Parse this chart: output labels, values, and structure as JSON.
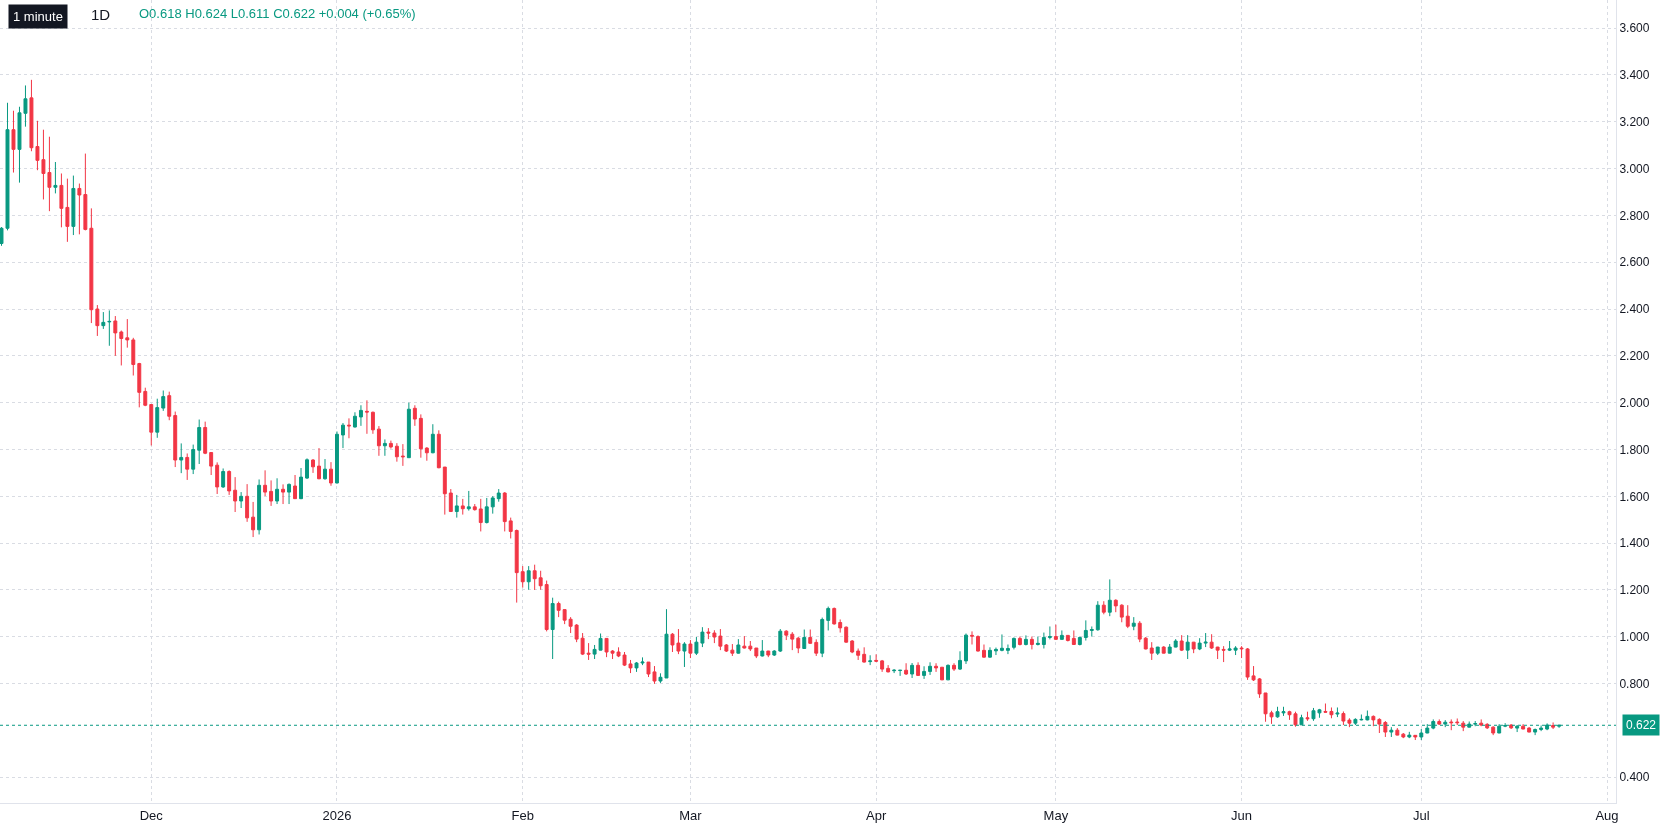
{
  "chart_data": {
    "type": "candlestick",
    "title": "1D",
    "annotations": [
      "1 minute",
      "O0.618 H0.624 L0.611 C0.622 +0.004 (+0.65%)"
    ],
    "colors": [
      "#089981",
      "#089981",
      "#f23645",
      "#089981",
      "#089981",
      "#f23645",
      "#f23645",
      "#f23645",
      "#f23645",
      "#089981",
      "#f23645",
      "#f23645",
      "#089981",
      "#f23645",
      "#f23645",
      "#f23645",
      "#f23645",
      "#089981",
      "#089981",
      "#f23645",
      "#f23645",
      "#f23645",
      "#f23645",
      "#f23645",
      "#f23645",
      "#f23645",
      "#089981",
      "#089981",
      "#f23645",
      "#f23645",
      "#089981",
      "#f23645",
      "#089981",
      "#089981",
      "#f23645",
      "#f23645",
      "#f23645",
      "#089981",
      "#f23645",
      "#f23645",
      "#089981",
      "#f23645",
      "#f23645",
      "#089981",
      "#f23645",
      "#f23645",
      "#089981",
      "#f23645",
      "#089981",
      "#f23645",
      "#089981",
      "#089981",
      "#f23645",
      "#f23645",
      "#089981",
      "#f23645",
      "#089981",
      "#089981",
      "#f23645",
      "#089981",
      "#089981",
      "#f23645",
      "#f23645",
      "#f23645",
      "#089981",
      "#f23645",
      "#f23645",
      "#f23645",
      "#089981",
      "#f23645",
      "#f23645",
      "#f23645",
      "#089981",
      "#f23645",
      "#f23645",
      "#f23645",
      "#089981",
      "#f23645",
      "#089981",
      "#f23645",
      "#f23645",
      "#089981",
      "#089981",
      "#089981",
      "#f23645",
      "#f23645",
      "#f23645",
      "#f23645",
      "#089981",
      "#f23645",
      "#f23645",
      "#f23645",
      "#089981",
      "#f23645",
      "#f23645",
      "#f23645",
      "#f23645",
      "#f23645",
      "#f23645",
      "#089981",
      "#089981",
      "#f23645",
      "#f23645",
      "#f23645",
      "#f23645",
      "#f23645",
      "#089981",
      "#089981",
      "#f23645",
      "#f23645",
      "#089981",
      "#089981",
      "#f23645",
      "#f23645",
      "#089981",
      "#f23645",
      "#089981",
      "#089981",
      "#f23645",
      "#f23645",
      "#f23645",
      "#f23645",
      "#f23645",
      "#089981",
      "#f23645",
      "#f23645",
      "#f23645",
      "#089981",
      "#f23645",
      "#089981",
      "#089981",
      "#f23645",
      "#f23645",
      "#f23645",
      "#089981",
      "#f23645",
      "#f23645",
      "#089981",
      "#089981",
      "#f23645",
      "#f23645",
      "#f23645",
      "#f23645",
      "#f23645",
      "#f23645",
      "#089981",
      "#f23645",
      "#f23645",
      "#f23645",
      "#089981",
      "#089981",
      "#f23645",
      "#089981",
      "#f23645",
      "#089981",
      "#089981",
      "#f23645",
      "#f23645",
      "#089981",
      "#f23645",
      "#089981",
      "#089981",
      "#f23645",
      "#f23645",
      "#f23645",
      "#089981",
      "#089981",
      "#089981",
      "#089981",
      "#089981",
      "#f23645",
      "#089981",
      "#f23645",
      "#089981",
      "#089981",
      "#089981",
      "#f23645",
      "#089981",
      "#f23645",
      "#f23645",
      "#089981",
      "#089981",
      "#089981",
      "#089981",
      "#f23645",
      "#089981",
      "#f23645",
      "#f23645",
      "#f23645",
      "#089981",
      "#f23645",
      "#f23645",
      "#f23645",
      "#089981",
      "#f23645",
      "#089981",
      "#089981",
      "#f23645",
      "#089981",
      "#f23645",
      "#089981",
      "#089981",
      "#f23645",
      "#f23645",
      "#f23645",
      "#089981",
      "#089981",
      "#f23645",
      "#f23645",
      "#f23645",
      "#f23645",
      "#f23645",
      "#f23645",
      "#089981",
      "#089981",
      "#f23645",
      "#f23645",
      "#089981",
      "#f23645",
      "#089981",
      "#089981",
      "#f23645",
      "#f23645",
      "#089981",
      "#f23645",
      "#f23645",
      "#089981",
      "#089981",
      "#089981",
      "#f23645",
      "#f23645",
      "#f23645",
      "#089981",
      "#f23645",
      "#f23645",
      "#089981",
      "#f23645",
      "#089981",
      "#089981",
      "#089981",
      "#f23645",
      "#089981",
      "#f23645",
      "#f23645",
      "#f23645",
      "#089981",
      "#089981",
      "#f23645",
      "#f23645",
      "#f23645",
      "#089981",
      "#089981",
      "#f23645",
      "#089981",
      "#f23645",
      "#f23645",
      "#089981",
      "#089981",
      "#089981",
      "#f23645",
      "#089981"
    ],
    "x": [
      "2025-11-06",
      "2025-11-07",
      "2025-11-08",
      "2025-11-09",
      "2025-11-10",
      "2025-11-11",
      "2025-11-12",
      "2025-11-13",
      "2025-11-14",
      "2025-11-15",
      "2025-11-16",
      "2025-11-17",
      "2025-11-18",
      "2025-11-19",
      "2025-11-20",
      "2025-11-21",
      "2025-11-22",
      "2025-11-23",
      "2025-11-24",
      "2025-11-25",
      "2025-11-26",
      "2025-11-27",
      "2025-11-28",
      "2025-11-29",
      "2025-11-30",
      "2025-12-01",
      "2025-12-02",
      "2025-12-03",
      "2025-12-04",
      "2025-12-05",
      "2025-12-06",
      "2025-12-07",
      "2025-12-08",
      "2025-12-09",
      "2025-12-10",
      "2025-12-11",
      "2025-12-12",
      "2025-12-13",
      "2025-12-14",
      "2025-12-15",
      "2025-12-16",
      "2025-12-17",
      "2025-12-18",
      "2025-12-19",
      "2025-12-20",
      "2025-12-21",
      "2025-12-22",
      "2025-12-23",
      "2025-12-24",
      "2025-12-25",
      "2025-12-26",
      "2025-12-27",
      "2025-12-28",
      "2025-12-29",
      "2025-12-30",
      "2025-12-31",
      "2026-01-01",
      "2026-01-02",
      "2026-01-03",
      "2026-01-04",
      "2026-01-05",
      "2026-01-06",
      "2026-01-07",
      "2026-01-08",
      "2026-01-09",
      "2026-01-10",
      "2026-01-11",
      "2026-01-12",
      "2026-01-13",
      "2026-01-14",
      "2026-01-15",
      "2026-01-16",
      "2026-01-17",
      "2026-01-18",
      "2026-01-19",
      "2026-01-20",
      "2026-01-21",
      "2026-01-22",
      "2026-01-23",
      "2026-01-24",
      "2026-01-25",
      "2026-01-26",
      "2026-01-27",
      "2026-01-28",
      "2026-01-29",
      "2026-01-30",
      "2026-01-31",
      "2026-02-01",
      "2026-02-02",
      "2026-02-03",
      "2026-02-04",
      "2026-02-05",
      "2026-02-06",
      "2026-02-07",
      "2026-02-08",
      "2026-02-09",
      "2026-02-10",
      "2026-02-11",
      "2026-02-12",
      "2026-02-13",
      "2026-02-14",
      "2026-02-15",
      "2026-02-16",
      "2026-02-17",
      "2026-02-18",
      "2026-02-19",
      "2026-02-20",
      "2026-02-21",
      "2026-02-22",
      "2026-02-23",
      "2026-02-24",
      "2026-02-25",
      "2026-02-26",
      "2026-02-27",
      "2026-02-28",
      "2026-03-01",
      "2026-03-02",
      "2026-03-03",
      "2026-03-04",
      "2026-03-05",
      "2026-03-06",
      "2026-03-07",
      "2026-03-08",
      "2026-03-09",
      "2026-03-10",
      "2026-03-11",
      "2026-03-12",
      "2026-03-13",
      "2026-03-14",
      "2026-03-15",
      "2026-03-16",
      "2026-03-17",
      "2026-03-18",
      "2026-03-19",
      "2026-03-20",
      "2026-03-21",
      "2026-03-22",
      "2026-03-23",
      "2026-03-24",
      "2026-03-25",
      "2026-03-26",
      "2026-03-27",
      "2026-03-28",
      "2026-03-29",
      "2026-03-30",
      "2026-03-31",
      "2026-04-01",
      "2026-04-02",
      "2026-04-03",
      "2026-04-04",
      "2026-04-05",
      "2026-04-06",
      "2026-04-07",
      "2026-04-08",
      "2026-04-09",
      "2026-04-10",
      "2026-04-11",
      "2026-04-12",
      "2026-04-13",
      "2026-04-14",
      "2026-04-15",
      "2026-04-16",
      "2026-04-17",
      "2026-04-18",
      "2026-04-19",
      "2026-04-20",
      "2026-04-21",
      "2026-04-22",
      "2026-04-23",
      "2026-04-24",
      "2026-04-25",
      "2026-04-26",
      "2026-04-27",
      "2026-04-28",
      "2026-04-29",
      "2026-04-30",
      "2026-05-01",
      "2026-05-02",
      "2026-05-03",
      "2026-05-04",
      "2026-05-05",
      "2026-05-06",
      "2026-05-07",
      "2026-05-08",
      "2026-05-09",
      "2026-05-10",
      "2026-05-11",
      "2026-05-12",
      "2026-05-13",
      "2026-05-14",
      "2026-05-15",
      "2026-05-16",
      "2026-05-17",
      "2026-05-18",
      "2026-05-19",
      "2026-05-20",
      "2026-05-21",
      "2026-05-22",
      "2026-05-23",
      "2026-05-24",
      "2026-05-25",
      "2026-05-26",
      "2026-05-27",
      "2026-05-28",
      "2026-05-29",
      "2026-05-30",
      "2026-05-31",
      "2026-06-01",
      "2026-06-02",
      "2026-06-03",
      "2026-06-04",
      "2026-06-05",
      "2026-06-06",
      "2026-06-07",
      "2026-06-08",
      "2026-06-09",
      "2026-06-10",
      "2026-06-11",
      "2026-06-12",
      "2026-06-13",
      "2026-06-14",
      "2026-06-15",
      "2026-06-16",
      "2026-06-17",
      "2026-06-18",
      "2026-06-19",
      "2026-06-20",
      "2026-06-21",
      "2026-06-22",
      "2026-06-23",
      "2026-06-24",
      "2026-06-25",
      "2026-06-26",
      "2026-06-27",
      "2026-06-28",
      "2026-06-29",
      "2026-06-30",
      "2026-07-01",
      "2026-07-02",
      "2026-07-03",
      "2026-07-04",
      "2026-07-05",
      "2026-07-06",
      "2026-07-07",
      "2026-07-08",
      "2026-07-09",
      "2026-07-10",
      "2026-07-11",
      "2026-07-12",
      "2026-07-13",
      "2026-07-14",
      "2026-07-15",
      "2026-07-16",
      "2026-07-17",
      "2026-07-18",
      "2026-07-19",
      "2026-07-20",
      "2026-07-21",
      "2026-07-22",
      "2026-07-23",
      "2026-07-24"
    ],
    "ohlc": [
      [
        2.68,
        2.75,
        2.67,
        2.745
      ],
      [
        2.745,
        3.281,
        2.736,
        3.166
      ],
      [
        3.166,
        3.247,
        2.983,
        3.082
      ],
      [
        3.082,
        3.264,
        2.94,
        3.238
      ],
      [
        3.236,
        3.355,
        3.179,
        3.298
      ],
      [
        3.302,
        3.379,
        3.074,
        3.089
      ],
      [
        3.094,
        3.204,
        2.993,
        3.035
      ],
      [
        3.038,
        3.166,
        2.868,
        2.979
      ],
      [
        2.983,
        3.136,
        2.818,
        2.92
      ],
      [
        2.92,
        3.028,
        2.894,
        2.928
      ],
      [
        2.928,
        2.979,
        2.749,
        2.83
      ],
      [
        2.834,
        2.957,
        2.687,
        2.753
      ],
      [
        2.753,
        2.97,
        2.716,
        2.915
      ],
      [
        2.915,
        2.936,
        2.719,
        2.887
      ],
      [
        2.889,
        3.064,
        2.736,
        2.74
      ],
      [
        2.745,
        2.83,
        2.34,
        2.397
      ],
      [
        2.4,
        2.417,
        2.285,
        2.329
      ],
      [
        2.329,
        2.387,
        2.315,
        2.343
      ],
      [
        2.345,
        2.394,
        2.243,
        2.347
      ],
      [
        2.349,
        2.37,
        2.2,
        2.298
      ],
      [
        2.302,
        2.308,
        2.159,
        2.274
      ],
      [
        2.277,
        2.357,
        2.235,
        2.268
      ],
      [
        2.268,
        2.277,
        2.116,
        2.163
      ],
      [
        2.167,
        2.17,
        1.98,
        2.044
      ],
      [
        2.048,
        2.064,
        1.985,
        1.989
      ],
      [
        1.992,
        1.993,
        1.817,
        1.874
      ],
      [
        1.874,
        2.017,
        1.85,
        1.979
      ],
      [
        1.977,
        2.052,
        1.965,
        2.026
      ],
      [
        2.03,
        2.047,
        1.925,
        1.942
      ],
      [
        1.945,
        1.962,
        1.725,
        1.755
      ],
      [
        1.755,
        1.826,
        1.699,
        1.766
      ],
      [
        1.766,
        1.783,
        1.67,
        1.716
      ],
      [
        1.716,
        1.821,
        1.695,
        1.8
      ],
      [
        1.797,
        1.928,
        1.738,
        1.894
      ],
      [
        1.894,
        1.919,
        1.78,
        1.784
      ],
      [
        1.787,
        1.787,
        1.691,
        1.729
      ],
      [
        1.733,
        1.745,
        1.61,
        1.64
      ],
      [
        1.64,
        1.719,
        1.636,
        1.706
      ],
      [
        1.706,
        1.711,
        1.606,
        1.623
      ],
      [
        1.626,
        1.682,
        1.533,
        1.58
      ],
      [
        1.58,
        1.618,
        1.55,
        1.6
      ],
      [
        1.6,
        1.652,
        1.491,
        1.508
      ],
      [
        1.511,
        1.576,
        1.426,
        1.457
      ],
      [
        1.457,
        1.672,
        1.437,
        1.647
      ],
      [
        1.647,
        1.711,
        1.601,
        1.618
      ],
      [
        1.621,
        1.668,
        1.559,
        1.58
      ],
      [
        1.58,
        1.677,
        1.567,
        1.63
      ],
      [
        1.63,
        1.651,
        1.567,
        1.618
      ],
      [
        1.618,
        1.655,
        1.567,
        1.651
      ],
      [
        1.644,
        1.691,
        1.59,
        1.59
      ],
      [
        1.59,
        1.721,
        1.588,
        1.682
      ],
      [
        1.678,
        1.762,
        1.674,
        1.756
      ],
      [
        1.755,
        1.759,
        1.7,
        1.726
      ],
      [
        1.729,
        1.806,
        1.673,
        1.675
      ],
      [
        1.675,
        1.759,
        1.671,
        1.716
      ],
      [
        1.716,
        1.746,
        1.645,
        1.657
      ],
      [
        1.657,
        1.877,
        1.655,
        1.865
      ],
      [
        1.862,
        1.913,
        1.806,
        1.904
      ],
      [
        1.904,
        1.933,
        1.848,
        1.901
      ],
      [
        1.896,
        1.959,
        1.894,
        1.942
      ],
      [
        1.939,
        1.989,
        1.901,
        1.967
      ],
      [
        1.963,
        2.01,
        1.867,
        1.96
      ],
      [
        1.959,
        1.962,
        1.867,
        1.884
      ],
      [
        1.887,
        1.9,
        1.773,
        1.816
      ],
      [
        1.816,
        1.843,
        1.773,
        1.826
      ],
      [
        1.826,
        1.838,
        1.804,
        1.811
      ],
      [
        1.814,
        1.827,
        1.748,
        1.769
      ],
      [
        1.772,
        1.823,
        1.73,
        1.769
      ],
      [
        1.765,
        2.0,
        1.765,
        1.972
      ],
      [
        1.976,
        1.989,
        1.901,
        1.93
      ],
      [
        1.933,
        1.95,
        1.765,
        1.803
      ],
      [
        1.806,
        1.81,
        1.752,
        1.786
      ],
      [
        1.786,
        1.908,
        1.784,
        1.865
      ],
      [
        1.865,
        1.882,
        1.72,
        1.722
      ],
      [
        1.725,
        1.725,
        1.522,
        1.611
      ],
      [
        1.614,
        1.631,
        1.533,
        1.535
      ],
      [
        1.535,
        1.606,
        1.509,
        1.559
      ],
      [
        1.559,
        1.589,
        1.522,
        1.547
      ],
      [
        1.547,
        1.623,
        1.539,
        1.555
      ],
      [
        1.555,
        1.567,
        1.539,
        1.543
      ],
      [
        1.546,
        1.589,
        1.45,
        1.488
      ],
      [
        1.488,
        1.593,
        1.484,
        1.555
      ],
      [
        1.555,
        1.601,
        1.526,
        1.593
      ],
      [
        1.59,
        1.631,
        1.577,
        1.614
      ],
      [
        1.614,
        1.618,
        1.45,
        1.492
      ],
      [
        1.495,
        1.509,
        1.42,
        1.45
      ],
      [
        1.454,
        1.458,
        1.146,
        1.274
      ],
      [
        1.278,
        1.302,
        1.21,
        1.235
      ],
      [
        1.235,
        1.302,
        1.201,
        1.282
      ],
      [
        1.282,
        1.308,
        1.2,
        1.248
      ],
      [
        1.252,
        1.282,
        1.201,
        1.218
      ],
      [
        1.223,
        1.24,
        1.023,
        1.031
      ],
      [
        1.031,
        1.167,
        0.905,
        1.142
      ],
      [
        1.142,
        1.15,
        1.084,
        1.113
      ],
      [
        1.116,
        1.116,
        1.054,
        1.071
      ],
      [
        1.075,
        1.084,
        1.016,
        1.045
      ],
      [
        1.05,
        1.054,
        0.977,
        0.99
      ],
      [
        0.994,
        1.016,
        0.922,
        0.926
      ],
      [
        0.93,
        0.973,
        0.901,
        0.926
      ],
      [
        0.926,
        0.965,
        0.905,
        0.946
      ],
      [
        0.943,
        1.014,
        0.942,
        0.993
      ],
      [
        0.993,
        0.994,
        0.913,
        0.935
      ],
      [
        0.939,
        0.943,
        0.905,
        0.93
      ],
      [
        0.935,
        0.955,
        0.913,
        0.918
      ],
      [
        0.922,
        0.935,
        0.875,
        0.879
      ],
      [
        0.884,
        0.901,
        0.845,
        0.867
      ],
      [
        0.867,
        0.892,
        0.85,
        0.888
      ],
      [
        0.888,
        0.912,
        0.879,
        0.892
      ],
      [
        0.892,
        0.892,
        0.828,
        0.841
      ],
      [
        0.85,
        0.875,
        0.799,
        0.811
      ],
      [
        0.811,
        0.844,
        0.803,
        0.827
      ],
      [
        0.824,
        1.118,
        0.824,
        1.011
      ],
      [
        1.011,
        1.016,
        0.935,
        0.965
      ],
      [
        0.973,
        1.033,
        0.926,
        0.939
      ],
      [
        0.939,
        0.977,
        0.871,
        0.969
      ],
      [
        0.969,
        0.986,
        0.909,
        0.93
      ],
      [
        0.93,
        0.999,
        0.922,
        0.977
      ],
      [
        0.973,
        1.041,
        0.956,
        1.02
      ],
      [
        1.02,
        1.037,
        0.99,
        1.016
      ],
      [
        1.016,
        1.028,
        0.973,
        0.999
      ],
      [
        1.003,
        1.033,
        0.943,
        0.96
      ],
      [
        0.965,
        0.969,
        0.935,
        0.939
      ],
      [
        0.943,
        0.969,
        0.918,
        0.93
      ],
      [
        0.93,
        0.99,
        0.928,
        0.965
      ],
      [
        0.96,
        1.003,
        0.95,
        0.952
      ],
      [
        0.96,
        0.982,
        0.939,
        0.948
      ],
      [
        0.952,
        0.952,
        0.909,
        0.918
      ],
      [
        0.918,
        0.986,
        0.916,
        0.939
      ],
      [
        0.939,
        0.94,
        0.913,
        0.922
      ],
      [
        0.922,
        0.943,
        0.918,
        0.939
      ],
      [
        0.939,
        1.033,
        0.935,
        1.024
      ],
      [
        1.024,
        1.028,
        0.986,
        1.007
      ],
      [
        1.011,
        1.02,
        0.943,
        0.99
      ],
      [
        0.994,
        0.999,
        0.93,
        0.952
      ],
      [
        0.95,
        1.031,
        0.948,
        0.997
      ],
      [
        0.997,
        1.031,
        0.97,
        0.972
      ],
      [
        0.976,
        0.989,
        0.918,
        0.93
      ],
      [
        0.93,
        1.082,
        0.913,
        1.074
      ],
      [
        1.07,
        1.129,
        1.027,
        1.121
      ],
      [
        1.121,
        1.125,
        1.052,
        1.055
      ],
      [
        1.061,
        1.074,
        1.018,
        1.038
      ],
      [
        1.041,
        1.044,
        0.975,
        0.977
      ],
      [
        0.982,
        0.986,
        0.93,
        0.935
      ],
      [
        0.939,
        0.95,
        0.901,
        0.921
      ],
      [
        0.925,
        0.955,
        0.89,
        0.892
      ],
      [
        0.894,
        0.921,
        0.879,
        0.897
      ],
      [
        0.899,
        0.925,
        0.892,
        0.896
      ],
      [
        0.897,
        0.901,
        0.85,
        0.862
      ],
      [
        0.865,
        0.879,
        0.848,
        0.85
      ],
      [
        0.855,
        0.862,
        0.845,
        0.857
      ],
      [
        0.856,
        0.858,
        0.833,
        0.857
      ],
      [
        0.857,
        0.887,
        0.837,
        0.841
      ],
      [
        0.841,
        0.888,
        0.824,
        0.878
      ],
      [
        0.878,
        0.891,
        0.833,
        0.835
      ],
      [
        0.835,
        0.874,
        0.82,
        0.852
      ],
      [
        0.852,
        0.891,
        0.837,
        0.874
      ],
      [
        0.874,
        0.887,
        0.85,
        0.867
      ],
      [
        0.87,
        0.871,
        0.815,
        0.816
      ],
      [
        0.816,
        0.882,
        0.815,
        0.878
      ],
      [
        0.878,
        0.887,
        0.854,
        0.862
      ],
      [
        0.862,
        0.938,
        0.858,
        0.899
      ],
      [
        0.897,
        1.014,
        0.884,
        1.007
      ],
      [
        1.006,
        1.023,
        0.967,
        1.003
      ],
      [
        1.001,
        1.006,
        0.937,
        0.939
      ],
      [
        0.942,
        0.967,
        0.911,
        0.913
      ],
      [
        0.913,
        0.955,
        0.911,
        0.942
      ],
      [
        0.94,
        0.954,
        0.922,
        0.946
      ],
      [
        0.942,
        1.01,
        0.938,
        0.951
      ],
      [
        0.942,
        0.967,
        0.926,
        0.95
      ],
      [
        0.955,
        0.997,
        0.946,
        0.993
      ],
      [
        0.993,
        1.001,
        0.963,
        0.967
      ],
      [
        0.967,
        1.006,
        0.963,
        0.989
      ],
      [
        0.989,
        1.001,
        0.946,
        0.967
      ],
      [
        0.967,
        1.001,
        0.963,
        0.972
      ],
      [
        0.967,
        1.018,
        0.95,
        0.997
      ],
      [
        0.997,
        1.044,
        0.989,
        1.001
      ],
      [
        1.001,
        1.052,
        0.988,
        0.989
      ],
      [
        0.989,
        1.027,
        0.988,
        1.006
      ],
      [
        1.006,
        1.007,
        0.98,
        0.984
      ],
      [
        0.993,
        1.027,
        0.965,
        0.967
      ],
      [
        0.967,
        1.001,
        0.963,
        0.997
      ],
      [
        0.997,
        1.07,
        0.984,
        1.027
      ],
      [
        1.027,
        1.044,
        1.001,
        1.031
      ],
      [
        1.03,
        1.152,
        1.026,
        1.135
      ],
      [
        1.135,
        1.152,
        1.096,
        1.105
      ],
      [
        1.105,
        1.245,
        1.088,
        1.156
      ],
      [
        1.156,
        1.16,
        1.105,
        1.132
      ],
      [
        1.135,
        1.139,
        1.062,
        1.084
      ],
      [
        1.088,
        1.135,
        1.037,
        1.045
      ],
      [
        1.045,
        1.084,
        1.028,
        1.058
      ],
      [
        1.058,
        1.067,
        0.977,
        0.99
      ],
      [
        0.994,
        0.999,
        0.946,
        0.948
      ],
      [
        0.952,
        0.977,
        0.901,
        0.93
      ],
      [
        0.93,
        0.957,
        0.922,
        0.956
      ],
      [
        0.956,
        0.96,
        0.929,
        0.93
      ],
      [
        0.93,
        0.969,
        0.929,
        0.956
      ],
      [
        0.956,
        0.99,
        0.955,
        0.982
      ],
      [
        0.982,
        1.007,
        0.939,
        0.943
      ],
      [
        0.943,
        1.007,
        0.905,
        0.977
      ],
      [
        0.977,
        0.978,
        0.93,
        0.948
      ],
      [
        0.948,
        0.994,
        0.943,
        0.973
      ],
      [
        0.973,
        1.016,
        0.956,
        0.977
      ],
      [
        0.977,
        1.011,
        0.948,
        0.952
      ],
      [
        0.956,
        0.957,
        0.905,
        0.943
      ],
      [
        0.946,
        0.96,
        0.892,
        0.943
      ],
      [
        0.943,
        0.982,
        0.939,
        0.948
      ],
      [
        0.943,
        0.96,
        0.922,
        0.952
      ],
      [
        0.952,
        0.96,
        0.909,
        0.949
      ],
      [
        0.948,
        0.952,
        0.816,
        0.828
      ],
      [
        0.833,
        0.875,
        0.811,
        0.816
      ],
      [
        0.82,
        0.824,
        0.739,
        0.756
      ],
      [
        0.76,
        0.76,
        0.637,
        0.671
      ],
      [
        0.675,
        0.684,
        0.628,
        0.658
      ],
      [
        0.658,
        0.701,
        0.654,
        0.68
      ],
      [
        0.675,
        0.701,
        0.662,
        0.68
      ],
      [
        0.68,
        0.684,
        0.645,
        0.667
      ],
      [
        0.671,
        0.68,
        0.616,
        0.624
      ],
      [
        0.624,
        0.667,
        0.623,
        0.654
      ],
      [
        0.654,
        0.68,
        0.641,
        0.65
      ],
      [
        0.65,
        0.696,
        0.641,
        0.684
      ],
      [
        0.675,
        0.692,
        0.654,
        0.688
      ],
      [
        0.681,
        0.715,
        0.677,
        0.678
      ],
      [
        0.681,
        0.698,
        0.652,
        0.667
      ],
      [
        0.67,
        0.698,
        0.657,
        0.674
      ],
      [
        0.672,
        0.681,
        0.623,
        0.64
      ],
      [
        0.644,
        0.652,
        0.614,
        0.631
      ],
      [
        0.631,
        0.652,
        0.623,
        0.647
      ],
      [
        0.645,
        0.668,
        0.643,
        0.647
      ],
      [
        0.645,
        0.685,
        0.643,
        0.66
      ],
      [
        0.66,
        0.664,
        0.618,
        0.645
      ],
      [
        0.647,
        0.652,
        0.589,
        0.627
      ],
      [
        0.634,
        0.64,
        0.572,
        0.593
      ],
      [
        0.593,
        0.614,
        0.572,
        0.601
      ],
      [
        0.601,
        0.61,
        0.579,
        0.58
      ],
      [
        0.584,
        0.589,
        0.567,
        0.572
      ],
      [
        0.572,
        0.594,
        0.567,
        0.58
      ],
      [
        0.579,
        0.58,
        0.559,
        0.572
      ],
      [
        0.572,
        0.606,
        0.559,
        0.589
      ],
      [
        0.589,
        0.627,
        0.588,
        0.61
      ],
      [
        0.61,
        0.647,
        0.605,
        0.638
      ],
      [
        0.638,
        0.647,
        0.623,
        0.627
      ],
      [
        0.627,
        0.644,
        0.614,
        0.635
      ],
      [
        0.636,
        0.647,
        0.601,
        0.633
      ],
      [
        0.636,
        0.651,
        0.623,
        0.633
      ],
      [
        0.631,
        0.64,
        0.597,
        0.614
      ],
      [
        0.614,
        0.638,
        0.613,
        0.627
      ],
      [
        0.627,
        0.64,
        0.618,
        0.629
      ],
      [
        0.631,
        0.647,
        0.618,
        0.623
      ],
      [
        0.626,
        0.631,
        0.606,
        0.611
      ],
      [
        0.614,
        0.618,
        0.58,
        0.589
      ],
      [
        0.589,
        0.627,
        0.588,
        0.618
      ],
      [
        0.618,
        0.631,
        0.614,
        0.621
      ],
      [
        0.623,
        0.627,
        0.606,
        0.611
      ],
      [
        0.61,
        0.623,
        0.593,
        0.618
      ],
      [
        0.618,
        0.627,
        0.605,
        0.606
      ],
      [
        0.61,
        0.614,
        0.592,
        0.593
      ],
      [
        0.593,
        0.608,
        0.58,
        0.604
      ],
      [
        0.604,
        0.621,
        0.597,
        0.61
      ],
      [
        0.606,
        0.63,
        0.601,
        0.623
      ],
      [
        0.621,
        0.634,
        0.606,
        0.614
      ],
      [
        0.618,
        0.624,
        0.611,
        0.622
      ]
    ],
    "xlim": [
      "2025-11-05T18:00",
      "2026-08-02T12:00"
    ],
    "xticks": [
      {
        "value": "2025-12-01",
        "label": "Dec"
      },
      {
        "value": "2026-01-01",
        "label": "2026"
      },
      {
        "value": "2026-02-01",
        "label": "Feb"
      },
      {
        "value": "2026-03-01",
        "label": "Mar"
      },
      {
        "value": "2026-04-01",
        "label": "Apr"
      },
      {
        "value": "2026-05-01",
        "label": "May"
      },
      {
        "value": "2026-06-01",
        "label": "Jun"
      },
      {
        "value": "2026-07-01",
        "label": "Jul"
      },
      {
        "value": "2026-08-01",
        "label": "Aug"
      }
    ],
    "ylim": [
      0.29,
      3.72
    ],
    "yticks": [
      {
        "value": 0.4,
        "label": "0.400"
      },
      {
        "value": 0.8,
        "label": "0.800"
      },
      {
        "value": 1.0,
        "label": "1.000"
      },
      {
        "value": 1.2,
        "label": "1.200"
      },
      {
        "value": 1.4,
        "label": "1.400"
      },
      {
        "value": 1.6,
        "label": "1.600"
      },
      {
        "value": 1.8,
        "label": "1.800"
      },
      {
        "value": 2.0,
        "label": "2.000"
      },
      {
        "value": 2.2,
        "label": "2.200"
      },
      {
        "value": 2.4,
        "label": "2.400"
      },
      {
        "value": 2.6,
        "label": "2.600"
      },
      {
        "value": 2.8,
        "label": "2.800"
      },
      {
        "value": 3.0,
        "label": "3.000"
      },
      {
        "value": 3.2,
        "label": "3.200"
      },
      {
        "value": 3.4,
        "label": "3.400"
      },
      {
        "value": 3.6,
        "label": "3.600"
      }
    ],
    "ref_lines": [
      {
        "axis": "y",
        "value": 0.622,
        "label": "0.622",
        "color": "#089981",
        "line_style": "dotted"
      }
    ],
    "grid": true
  }
}
